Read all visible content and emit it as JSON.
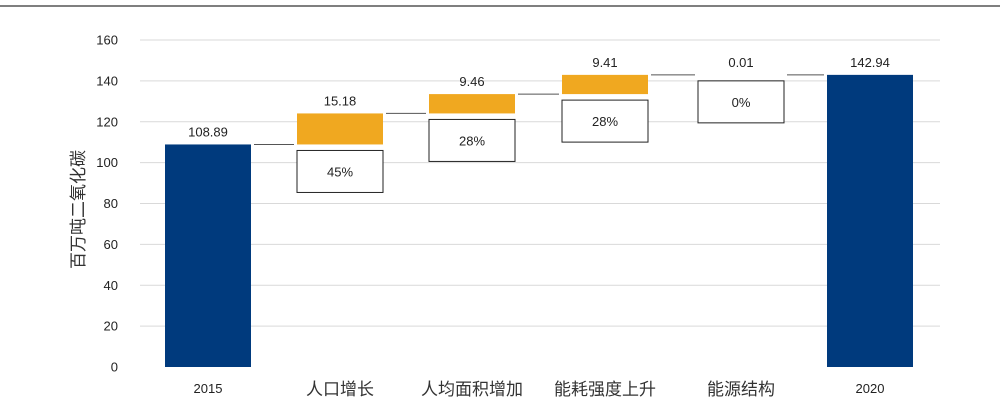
{
  "chart_data": {
    "type": "waterfall",
    "ylabel": "百万吨二氧化碳",
    "ylim": [
      0,
      160
    ],
    "yticks": [
      0,
      20,
      40,
      60,
      80,
      100,
      120,
      140,
      160
    ],
    "grid": true,
    "categories": [
      "2015",
      "人口增长",
      "人均面积增加",
      "能耗强度上升",
      "能源结构",
      "2020"
    ],
    "steps": [
      {
        "category": "2015",
        "kind": "total",
        "value": 108.89,
        "label": "108.89",
        "share": ""
      },
      {
        "category": "人口增长",
        "kind": "increase",
        "value": 15.18,
        "label": "15.18",
        "share": "45%"
      },
      {
        "category": "人均面积增加",
        "kind": "increase",
        "value": 9.46,
        "label": "9.46",
        "share": "28%"
      },
      {
        "category": "能耗强度上升",
        "kind": "increase",
        "value": 9.41,
        "label": "9.41",
        "share": "28%"
      },
      {
        "category": "能源结构",
        "kind": "increase",
        "value": 0.01,
        "label": "0.01",
        "share": "0%"
      },
      {
        "category": "2020",
        "kind": "total",
        "value": 142.94,
        "label": "142.94",
        "share": ""
      }
    ],
    "colors": {
      "total": "#003a7d",
      "increase": "#f0a820",
      "grid": "#d9d9d9",
      "connector": "#555555",
      "box_border": "#222222",
      "top_rule": "#333333"
    }
  }
}
